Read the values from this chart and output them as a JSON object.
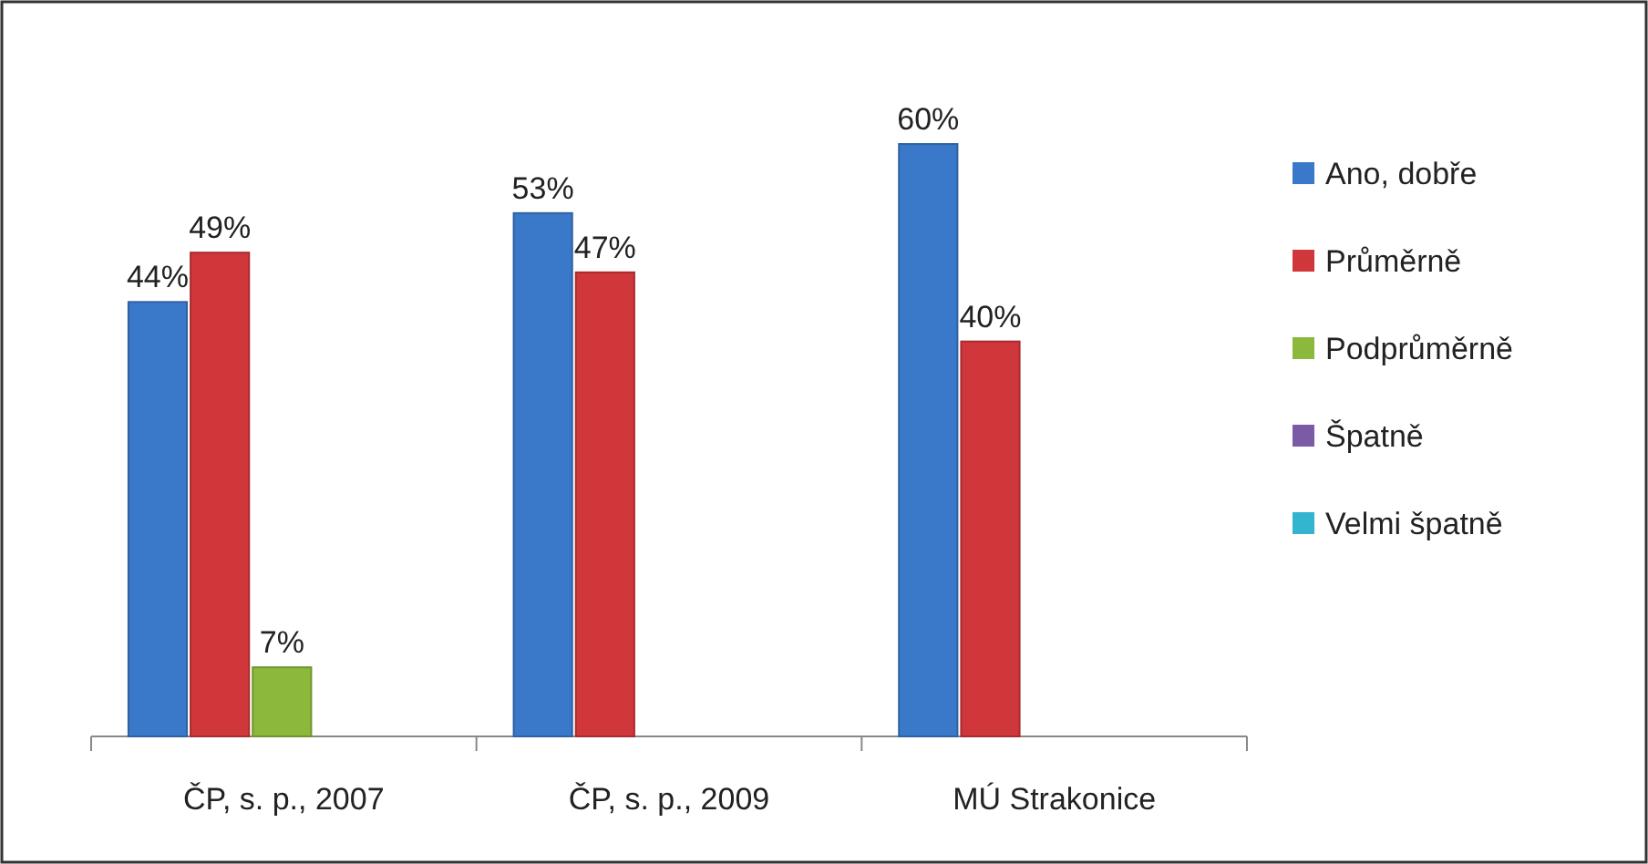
{
  "chart_data": {
    "type": "bar",
    "categories": [
      "ČP, s. p., 2007",
      "ČP, s. p., 2009",
      "MÚ Strakonice"
    ],
    "series": [
      {
        "name": "Ano, dobře",
        "color": "#3a78c9",
        "values": [
          44,
          53,
          60
        ],
        "value_labels": [
          "44%",
          "53%",
          "60%"
        ]
      },
      {
        "name": "Průměrně",
        "color": "#d0373a",
        "values": [
          49,
          47,
          40
        ],
        "value_labels": [
          "49%",
          "47%",
          "40%"
        ]
      },
      {
        "name": "Podprůměrně",
        "color": "#8cb83c",
        "values": [
          7,
          null,
          null
        ],
        "value_labels": [
          "7%",
          null,
          null
        ]
      },
      {
        "name": "Špatně",
        "color": "#7b5aa6",
        "values": [
          null,
          null,
          null
        ]
      },
      {
        "name": "Velmi špatně",
        "color": "#33b5cf",
        "values": [
          null,
          null,
          null
        ]
      }
    ],
    "legend": "right",
    "grid": false
  }
}
